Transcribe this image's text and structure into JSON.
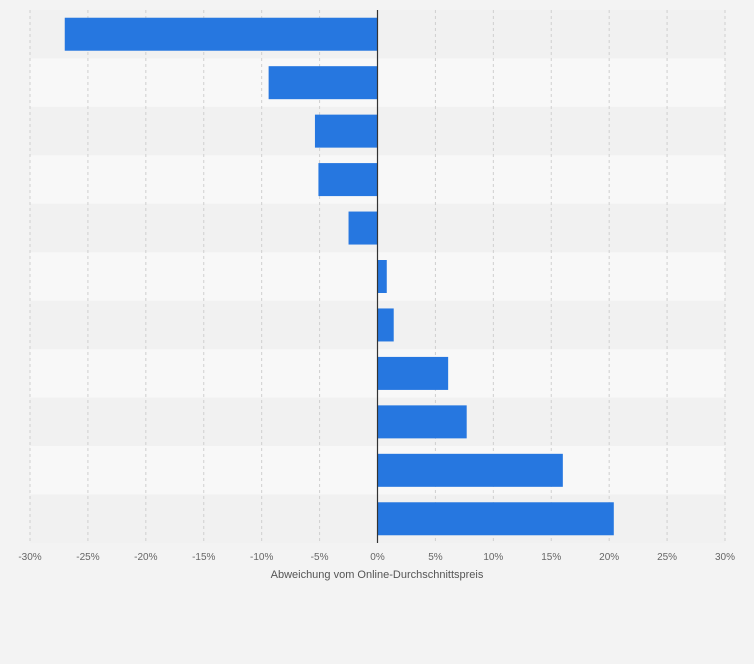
{
  "chart_data": {
    "type": "bar",
    "orientation": "horizontal",
    "title": "",
    "xlabel": "Abweichung vom Online-Durchschnittspreis",
    "ylabel": "",
    "xlim": [
      -30,
      30
    ],
    "x_ticks": [
      -30,
      -25,
      -20,
      -15,
      -10,
      -5,
      0,
      5,
      10,
      15,
      20,
      25,
      30
    ],
    "x_tick_labels": [
      "-30%",
      "-25%",
      "-20%",
      "-15%",
      "-10%",
      "-5%",
      "0%",
      "5%",
      "10%",
      "15%",
      "20%",
      "25%",
      "30%"
    ],
    "categories": [
      "",
      "",
      "",
      "",
      "",
      "",
      "",
      "",
      "",
      "",
      ""
    ],
    "values": [
      -27.0,
      -9.4,
      -5.4,
      -5.1,
      -2.5,
      0.8,
      1.4,
      6.1,
      7.7,
      16.0,
      20.4
    ],
    "grid": true,
    "legend": "none",
    "colors": {
      "bar": "#2677e0",
      "background": "#f3f3f3",
      "band_dark": "#f1f1f1",
      "band_light": "#f8f8f8",
      "grid": "#cfcfcf",
      "zero_line": "#333333",
      "tick_text": "#666666"
    }
  }
}
